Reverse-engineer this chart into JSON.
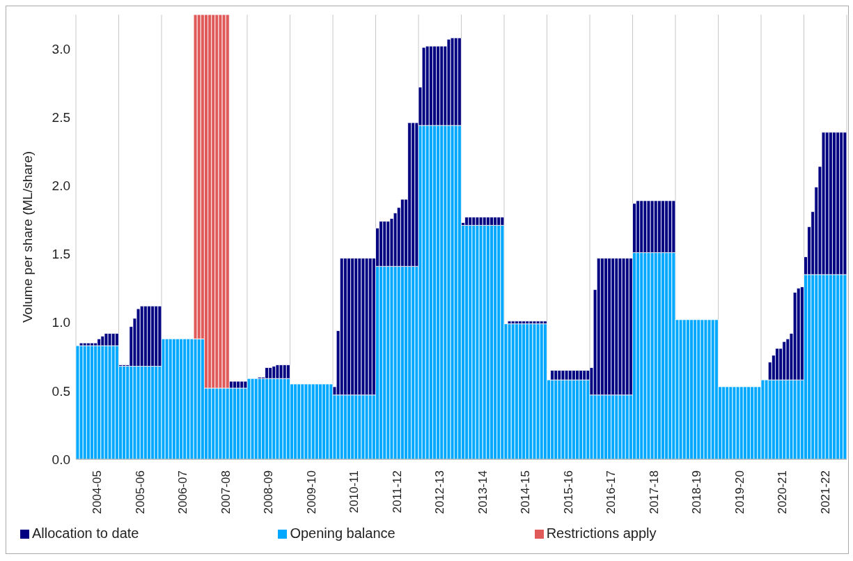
{
  "chart_data": {
    "type": "bar",
    "stacked": true,
    "ylabel": "Volume per share (ML/share)",
    "categories": [
      null,
      null,
      null,
      null,
      null,
      null,
      "2004-05",
      null,
      null,
      null,
      null,
      null,
      null,
      null,
      null,
      null,
      null,
      null,
      "2005-06",
      null,
      null,
      null,
      null,
      null,
      null,
      null,
      null,
      null,
      null,
      null,
      "2006-07",
      null,
      null,
      null,
      null,
      null,
      null,
      null,
      null,
      null,
      null,
      null,
      "2007-08",
      null,
      null,
      null,
      null,
      null,
      null,
      null,
      null,
      null,
      null,
      null,
      "2008-09",
      null,
      null,
      null,
      null,
      null,
      null,
      null,
      null,
      null,
      null,
      null,
      "2009-10",
      null,
      null,
      null,
      null,
      null,
      null,
      null,
      null,
      null,
      null,
      null,
      "2010-11",
      null,
      null,
      null,
      null,
      null,
      null,
      null,
      null,
      null,
      null,
      null,
      "2011-12",
      null,
      null,
      null,
      null,
      null,
      null,
      null,
      null,
      null,
      null,
      null,
      "2012-13",
      null,
      null,
      null,
      null,
      null,
      null,
      null,
      null,
      null,
      null,
      null,
      "2013-14",
      null,
      null,
      null,
      null,
      null,
      null,
      null,
      null,
      null,
      null,
      null,
      "2014-15",
      null,
      null,
      null,
      null,
      null,
      null,
      null,
      null,
      null,
      null,
      null,
      "2015-16",
      null,
      null,
      null,
      null,
      null,
      null,
      null,
      null,
      null,
      null,
      null,
      "2016-17",
      null,
      null,
      null,
      null,
      null,
      null,
      null,
      null,
      null,
      null,
      null,
      "2017-18",
      null,
      null,
      null,
      null,
      null,
      null,
      null,
      null,
      null,
      null,
      null,
      "2018-19",
      null,
      null,
      null,
      null,
      null,
      null,
      null,
      null,
      null,
      null,
      null,
      "2019-20",
      null,
      null,
      null,
      null,
      null,
      null,
      null,
      null,
      null,
      null,
      null,
      "2020-21",
      null,
      null,
      null,
      null,
      null,
      null,
      null,
      null,
      null,
      null,
      null,
      "2021-22",
      null,
      null,
      null,
      null,
      null
    ],
    "series": [
      {
        "name": "Opening balance",
        "color": "#00a8ff",
        "values": [
          0.83,
          0.83,
          0.83,
          0.83,
          0.83,
          0.83,
          0.83,
          0.83,
          0.83,
          0.83,
          0.83,
          0.83,
          0.68,
          0.68,
          0.68,
          0.68,
          0.68,
          0.68,
          0.68,
          0.68,
          0.68,
          0.68,
          0.68,
          0.68,
          0.88,
          0.88,
          0.88,
          0.88,
          0.88,
          0.88,
          0.88,
          0.88,
          0.88,
          0.88,
          0.88,
          0.88,
          0.52,
          0.52,
          0.52,
          0.52,
          0.52,
          0.52,
          0.52,
          0.52,
          0.52,
          0.52,
          0.52,
          0.52,
          0.59,
          0.59,
          0.59,
          0.59,
          0.59,
          0.59,
          0.59,
          0.59,
          0.59,
          0.59,
          0.59,
          0.59,
          0.55,
          0.55,
          0.55,
          0.55,
          0.55,
          0.55,
          0.55,
          0.55,
          0.55,
          0.55,
          0.55,
          0.55,
          0.47,
          0.47,
          0.47,
          0.47,
          0.47,
          0.47,
          0.47,
          0.47,
          0.47,
          0.47,
          0.47,
          0.47,
          1.41,
          1.41,
          1.41,
          1.41,
          1.41,
          1.41,
          1.41,
          1.41,
          1.41,
          1.41,
          1.41,
          1.41,
          2.44,
          2.44,
          2.44,
          2.44,
          2.44,
          2.44,
          2.44,
          2.44,
          2.44,
          2.44,
          2.44,
          2.44,
          1.71,
          1.71,
          1.71,
          1.71,
          1.71,
          1.71,
          1.71,
          1.71,
          1.71,
          1.71,
          1.71,
          1.71,
          0.99,
          0.99,
          0.99,
          0.99,
          0.99,
          0.99,
          0.99,
          0.99,
          0.99,
          0.99,
          0.99,
          0.99,
          0.58,
          0.58,
          0.58,
          0.58,
          0.58,
          0.58,
          0.58,
          0.58,
          0.58,
          0.58,
          0.58,
          0.58,
          0.47,
          0.47,
          0.47,
          0.47,
          0.47,
          0.47,
          0.47,
          0.47,
          0.47,
          0.47,
          0.47,
          0.47,
          1.51,
          1.51,
          1.51,
          1.51,
          1.51,
          1.51,
          1.51,
          1.51,
          1.51,
          1.51,
          1.51,
          1.51,
          1.02,
          1.02,
          1.02,
          1.02,
          1.02,
          1.02,
          1.02,
          1.02,
          1.02,
          1.02,
          1.02,
          1.02,
          0.53,
          0.53,
          0.53,
          0.53,
          0.53,
          0.53,
          0.53,
          0.53,
          0.53,
          0.53,
          0.53,
          0.53,
          0.58,
          0.58,
          0.58,
          0.58,
          0.58,
          0.58,
          0.58,
          0.58,
          0.58,
          0.58,
          0.58,
          0.58,
          1.35,
          1.35,
          1.35,
          1.35,
          1.35,
          1.35,
          1.35,
          1.35,
          1.35,
          1.35,
          1.35,
          1.35
        ]
      },
      {
        "name": "Allocation to date",
        "color": "#000080",
        "values": [
          0,
          0.02,
          0.02,
          0.02,
          0.02,
          0.02,
          0.05,
          0.07,
          0.09,
          0.09,
          0.09,
          0.09,
          0.01,
          0.01,
          0.01,
          0.29,
          0.35,
          0.42,
          0.44,
          0.44,
          0.44,
          0.44,
          0.44,
          0.44,
          0,
          0,
          0,
          0,
          0,
          0,
          0,
          0,
          0,
          0,
          0,
          0,
          0,
          0,
          0,
          0,
          0,
          0,
          0,
          0.05,
          0.05,
          0.05,
          0.05,
          0.05,
          0,
          0,
          0,
          0.01,
          0.01,
          0.08,
          0.08,
          0.09,
          0.1,
          0.1,
          0.1,
          0.1,
          0,
          0,
          0,
          0,
          0,
          0,
          0,
          0,
          0,
          0,
          0,
          0,
          0.06,
          0.47,
          1,
          1,
          1,
          1,
          1,
          1,
          1,
          1,
          1,
          1,
          0.28,
          0.33,
          0.33,
          0.33,
          0.35,
          0.39,
          0.43,
          0.49,
          0.49,
          1.05,
          1.05,
          1.05,
          0.28,
          0.57,
          0.58,
          0.58,
          0.58,
          0.58,
          0.58,
          0.58,
          0.63,
          0.64,
          0.64,
          0.64,
          0.02,
          0.06,
          0.06,
          0.06,
          0.06,
          0.06,
          0.06,
          0.06,
          0.06,
          0.06,
          0.06,
          0.06,
          0,
          0.02,
          0.02,
          0.02,
          0.02,
          0.02,
          0.02,
          0.02,
          0.02,
          0.02,
          0.02,
          0.02,
          0,
          0.07,
          0.07,
          0.07,
          0.07,
          0.07,
          0.07,
          0.07,
          0.07,
          0.07,
          0.07,
          0.07,
          0.2,
          0.77,
          1,
          1,
          1,
          1,
          1,
          1,
          1,
          1,
          1,
          1,
          0.36,
          0.38,
          0.38,
          0.38,
          0.38,
          0.38,
          0.38,
          0.38,
          0.38,
          0.38,
          0.38,
          0.38,
          0,
          0,
          0,
          0,
          0,
          0,
          0,
          0,
          0,
          0,
          0,
          0,
          0,
          0,
          0,
          0,
          0,
          0,
          0,
          0,
          0,
          0,
          0,
          0,
          0,
          0,
          0.13,
          0.18,
          0.23,
          0.23,
          0.28,
          0.3,
          0.34,
          0.64,
          0.67,
          0.68,
          0.13,
          0.35,
          0.46,
          0.64,
          0.79,
          1.04,
          1.04,
          1.04,
          1.04,
          1.04,
          1.04,
          1.04
        ]
      },
      {
        "name": "Restrictions apply",
        "color": "#e05a5a",
        "values": [
          null,
          null,
          null,
          null,
          null,
          null,
          null,
          null,
          null,
          null,
          null,
          null,
          null,
          null,
          null,
          null,
          null,
          null,
          null,
          null,
          null,
          null,
          null,
          null,
          null,
          null,
          null,
          null,
          null,
          null,
          null,
          null,
          null,
          2.37,
          2.37,
          2.37,
          2.73,
          2.73,
          2.73,
          2.73,
          2.73,
          2.73,
          2.73,
          null,
          null,
          null,
          null,
          null,
          null,
          null,
          null,
          null,
          null,
          null,
          null,
          null,
          null,
          null,
          null,
          null,
          null,
          null,
          null,
          null,
          null,
          null,
          null,
          null,
          null,
          null,
          null,
          null,
          null,
          null,
          null,
          null,
          null,
          null,
          null,
          null,
          null,
          null,
          null,
          null,
          null,
          null,
          null,
          null,
          null,
          null,
          null,
          null,
          null,
          null,
          null,
          null,
          null,
          null,
          null,
          null,
          null,
          null,
          null,
          null,
          null,
          null,
          null,
          null,
          null,
          null,
          null,
          null,
          null,
          null,
          null,
          null,
          null,
          null,
          null,
          null,
          null,
          null,
          null,
          null,
          null,
          null,
          null,
          null,
          null,
          null,
          null,
          null,
          null,
          null,
          null,
          null,
          null,
          null,
          null,
          null,
          null,
          null,
          null,
          null,
          null,
          null,
          null,
          null,
          null,
          null,
          null,
          null,
          null,
          null,
          null,
          null,
          null,
          null,
          null,
          null,
          null,
          null,
          null,
          null,
          null,
          null,
          null,
          null,
          null,
          null,
          null,
          null,
          null,
          null,
          null,
          null,
          null,
          null,
          null,
          null,
          null,
          null,
          null,
          null,
          null,
          null,
          null,
          null,
          null,
          null,
          null,
          null,
          null,
          null,
          null,
          null,
          null,
          null,
          null,
          null,
          null,
          null,
          null,
          null,
          null,
          null,
          null,
          null,
          null,
          null,
          null,
          null,
          null,
          null,
          null,
          null
        ]
      }
    ],
    "ylim": [
      0,
      3.25
    ],
    "yticks": [
      {
        "value": 0,
        "label": "0.0"
      },
      {
        "value": 0.5,
        "label": "0.5"
      },
      {
        "value": 1,
        "label": "1.0"
      },
      {
        "value": 1.5,
        "label": "1.5"
      },
      {
        "value": 2,
        "label": "2.0"
      },
      {
        "value": 2.5,
        "label": "2.5"
      },
      {
        "value": 3,
        "label": "3.0"
      }
    ],
    "grid": "x",
    "legend": "bottom"
  }
}
